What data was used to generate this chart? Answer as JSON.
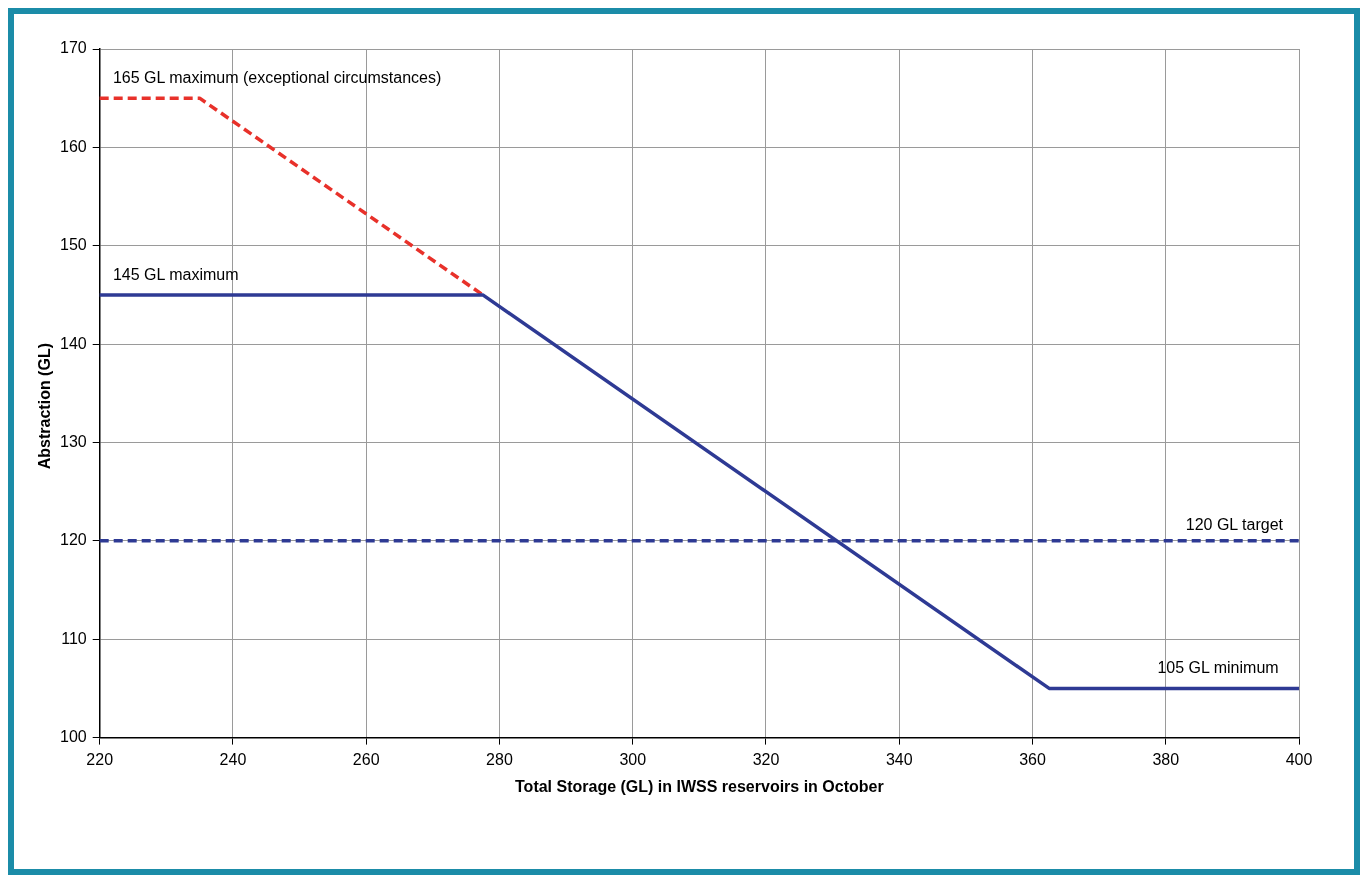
{
  "chart_data": {
    "type": "line",
    "xlabel": "Total Storage (GL) in IWSS reservoirs in October",
    "ylabel": "Abstraction (GL)",
    "x": [
      220,
      277.5,
      362.5,
      400
    ],
    "xlim": [
      220,
      400
    ],
    "xticks": [
      220,
      240,
      260,
      280,
      300,
      320,
      340,
      360,
      380,
      400
    ],
    "ylim": [
      100,
      170
    ],
    "yticks": [
      100,
      110,
      120,
      130,
      140,
      150,
      160,
      170
    ],
    "series": [
      {
        "color": "#2e3a94",
        "values": [
          145,
          145,
          105,
          105
        ],
        "line_style": "solid"
      },
      {
        "color": "#e8312a",
        "x": [
          220,
          235,
          277.5
        ],
        "values": [
          165,
          165,
          145
        ],
        "line_style": "dashed"
      }
    ],
    "ref_lines": [
      {
        "axis": "y",
        "value": 120,
        "label": "120 GL target",
        "color": "#2e3a94",
        "line_style": "dashed"
      }
    ],
    "annotations": [
      "165 GL maximum (exceptional circumstances)",
      "145 GL maximum",
      "105 GL minimum"
    ],
    "grid": true,
    "legend": false,
    "marker": "none"
  }
}
